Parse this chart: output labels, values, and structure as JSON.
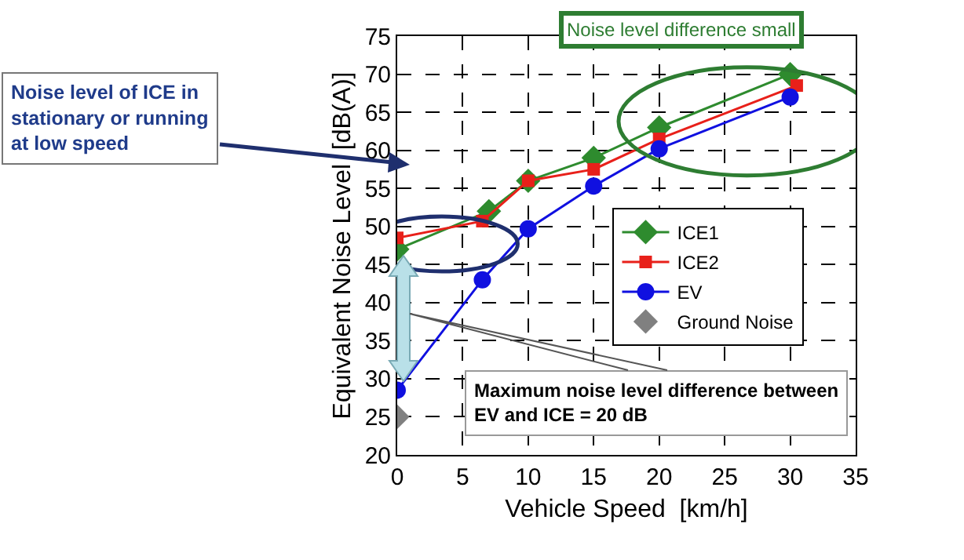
{
  "chart_data": {
    "type": "line",
    "xlabel": "Vehicle Speed  [km/h]",
    "ylabel": "Equivalent Noise Level  [dB(A)]",
    "xlim": [
      0,
      35
    ],
    "xticks": [
      0,
      5,
      10,
      15,
      20,
      25,
      30,
      35
    ],
    "ylim": [
      20,
      75
    ],
    "yticks": [
      20,
      25,
      30,
      35,
      40,
      45,
      50,
      55,
      60,
      65,
      70,
      75
    ],
    "grid": true,
    "legend": "right",
    "series": [
      {
        "name": "ICE1",
        "color": "#2e8b2e",
        "marker": "diamond",
        "x": [
          0,
          7,
          10,
          15,
          20,
          30
        ],
        "values": [
          47,
          52,
          56,
          59,
          63,
          70
        ]
      },
      {
        "name": "ICE2",
        "color": "#e8201a",
        "marker": "square",
        "x": [
          0,
          6.5,
          10,
          15,
          20,
          30.5
        ],
        "values": [
          48.5,
          50.7,
          56,
          57.5,
          61.5,
          68.5
        ]
      },
      {
        "name": "EV",
        "color": "#1010e0",
        "marker": "circle",
        "x": [
          0,
          6.5,
          10,
          15,
          20,
          30
        ],
        "values": [
          28.5,
          43,
          49.7,
          55.3,
          60.2,
          67
        ]
      },
      {
        "name": "Ground Noise",
        "type": "scatter",
        "color": "#808080",
        "marker": "diamond",
        "x": [
          0
        ],
        "values": [
          25
        ]
      }
    ],
    "annotations": [
      "Noise level of ICE in\nstationary or running\nat low speed",
      "Maximum noise level difference between\nEV and ICE = 20 dB",
      "Noise level difference small"
    ]
  }
}
